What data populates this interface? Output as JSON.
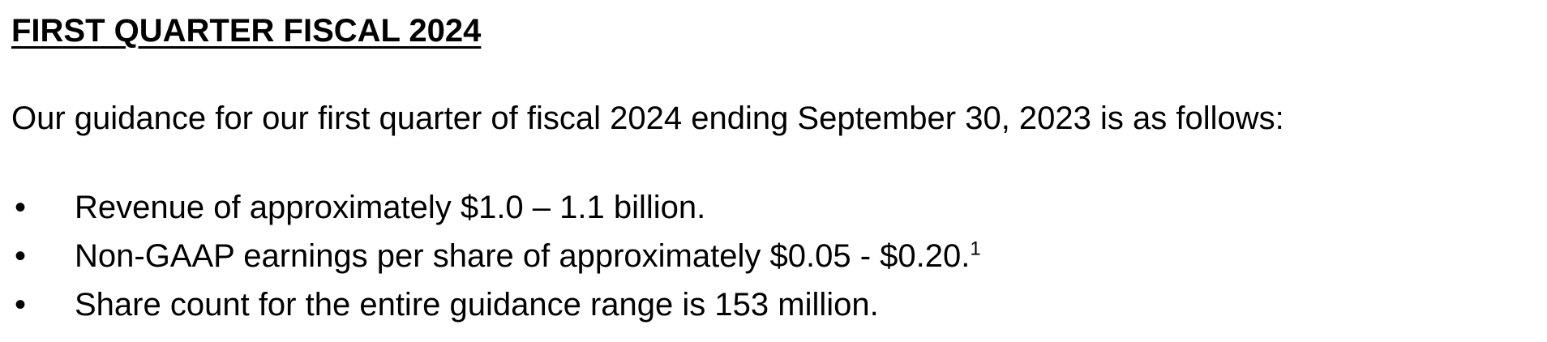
{
  "heading": "FIRST QUARTER FISCAL 2024",
  "intro": "Our guidance for our first quarter of fiscal 2024 ending September 30, 2023 is as follows:",
  "bullet_symbol": "•",
  "bullets": [
    {
      "text": "Revenue of approximately $1.0 – 1.1 billion.",
      "footnote": ""
    },
    {
      "text": "Non-GAAP earnings per share of approximately $0.05 - $0.20.",
      "footnote": "1"
    },
    {
      "text": "Share count for the entire guidance range is 153 million.",
      "footnote": ""
    }
  ]
}
